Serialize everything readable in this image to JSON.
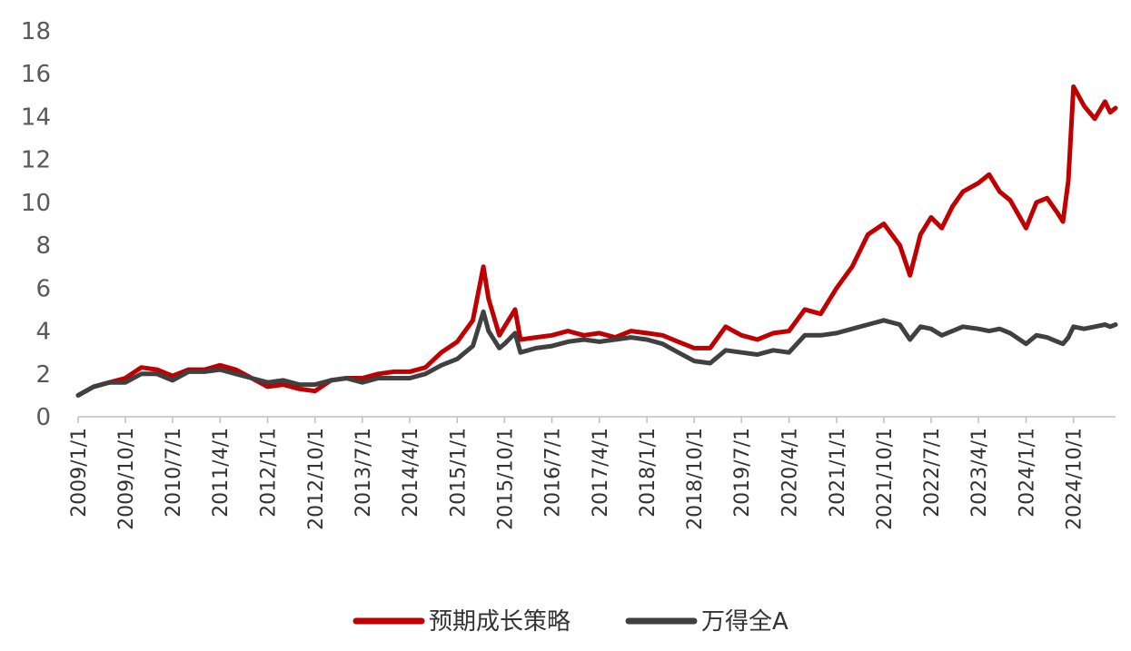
{
  "chart_data": {
    "type": "line",
    "ylim": [
      0,
      18
    ],
    "yticks": [
      "0",
      "2",
      "4",
      "6",
      "8",
      "10",
      "12",
      "14",
      "16",
      "18"
    ],
    "x_tick_labels": [
      "2009/1/1",
      "2009/10/1",
      "2010/7/1",
      "2011/4/1",
      "2012/1/1",
      "2012/10/1",
      "2013/7/1",
      "2014/4/1",
      "2015/1/1",
      "2015/10/1",
      "2016/7/1",
      "2017/4/1",
      "2018/1/1",
      "2018/10/1",
      "2019/7/1",
      "2020/4/1",
      "2021/1/1",
      "2021/10/1",
      "2022/7/1",
      "2023/4/1",
      "2024/1/1",
      "2024/10/1"
    ],
    "x_range": [
      "2009/1/1",
      "2025/6/1"
    ],
    "legend_position": "bottom",
    "series": [
      {
        "name": "预期成长策略",
        "color": "#C00000",
        "points": [
          [
            "2009/1/1",
            1.0
          ],
          [
            "2009/4/1",
            1.4
          ],
          [
            "2009/7/1",
            1.6
          ],
          [
            "2009/10/1",
            1.8
          ],
          [
            "2010/1/1",
            2.3
          ],
          [
            "2010/4/1",
            2.2
          ],
          [
            "2010/7/1",
            1.9
          ],
          [
            "2010/10/1",
            2.2
          ],
          [
            "2011/1/1",
            2.2
          ],
          [
            "2011/4/1",
            2.4
          ],
          [
            "2011/7/1",
            2.2
          ],
          [
            "2011/10/1",
            1.8
          ],
          [
            "2012/1/1",
            1.4
          ],
          [
            "2012/4/1",
            1.5
          ],
          [
            "2012/7/1",
            1.3
          ],
          [
            "2012/10/1",
            1.2
          ],
          [
            "2013/1/1",
            1.7
          ],
          [
            "2013/4/1",
            1.8
          ],
          [
            "2013/7/1",
            1.8
          ],
          [
            "2013/10/1",
            2.0
          ],
          [
            "2014/1/1",
            2.1
          ],
          [
            "2014/4/1",
            2.1
          ],
          [
            "2014/7/1",
            2.3
          ],
          [
            "2014/10/1",
            3.0
          ],
          [
            "2015/1/1",
            3.5
          ],
          [
            "2015/4/1",
            4.5
          ],
          [
            "2015/6/1",
            7.0
          ],
          [
            "2015/7/1",
            5.5
          ],
          [
            "2015/9/1",
            3.8
          ],
          [
            "2015/10/1",
            4.2
          ],
          [
            "2015/12/1",
            5.0
          ],
          [
            "2016/1/1",
            3.6
          ],
          [
            "2016/4/1",
            3.7
          ],
          [
            "2016/7/1",
            3.8
          ],
          [
            "2016/10/1",
            4.0
          ],
          [
            "2017/1/1",
            3.8
          ],
          [
            "2017/4/1",
            3.9
          ],
          [
            "2017/7/1",
            3.7
          ],
          [
            "2017/10/1",
            4.0
          ],
          [
            "2018/1/1",
            3.9
          ],
          [
            "2018/4/1",
            3.8
          ],
          [
            "2018/7/1",
            3.5
          ],
          [
            "2018/10/1",
            3.2
          ],
          [
            "2019/1/1",
            3.2
          ],
          [
            "2019/4/1",
            4.2
          ],
          [
            "2019/7/1",
            3.8
          ],
          [
            "2019/10/1",
            3.6
          ],
          [
            "2020/1/1",
            3.9
          ],
          [
            "2020/4/1",
            4.0
          ],
          [
            "2020/7/1",
            5.0
          ],
          [
            "2020/10/1",
            4.8
          ],
          [
            "2021/1/1",
            6.0
          ],
          [
            "2021/4/1",
            7.0
          ],
          [
            "2021/7/1",
            8.5
          ],
          [
            "2021/10/1",
            9.0
          ],
          [
            "2022/1/1",
            8.0
          ],
          [
            "2022/3/1",
            6.6
          ],
          [
            "2022/5/1",
            8.5
          ],
          [
            "2022/7/1",
            9.3
          ],
          [
            "2022/9/1",
            8.8
          ],
          [
            "2022/11/1",
            9.8
          ],
          [
            "2023/1/1",
            10.5
          ],
          [
            "2023/4/1",
            10.9
          ],
          [
            "2023/6/1",
            11.3
          ],
          [
            "2023/8/1",
            10.5
          ],
          [
            "2023/10/1",
            10.1
          ],
          [
            "2024/1/1",
            8.8
          ],
          [
            "2024/3/1",
            10.0
          ],
          [
            "2024/5/1",
            10.2
          ],
          [
            "2024/7/1",
            9.5
          ],
          [
            "2024/8/1",
            9.1
          ],
          [
            "2024/9/1",
            11.0
          ],
          [
            "2024/10/1",
            15.4
          ],
          [
            "2024/12/1",
            14.5
          ],
          [
            "2025/2/1",
            13.9
          ],
          [
            "2025/4/1",
            14.7
          ],
          [
            "2025/5/1",
            14.2
          ],
          [
            "2025/6/1",
            14.4
          ]
        ]
      },
      {
        "name": "万得全A",
        "color": "#404040",
        "points": [
          [
            "2009/1/1",
            1.0
          ],
          [
            "2009/4/1",
            1.4
          ],
          [
            "2009/7/1",
            1.6
          ],
          [
            "2009/10/1",
            1.6
          ],
          [
            "2010/1/1",
            2.0
          ],
          [
            "2010/4/1",
            2.0
          ],
          [
            "2010/7/1",
            1.7
          ],
          [
            "2010/10/1",
            2.1
          ],
          [
            "2011/1/1",
            2.1
          ],
          [
            "2011/4/1",
            2.2
          ],
          [
            "2011/7/1",
            2.0
          ],
          [
            "2011/10/1",
            1.8
          ],
          [
            "2012/1/1",
            1.6
          ],
          [
            "2012/4/1",
            1.7
          ],
          [
            "2012/7/1",
            1.5
          ],
          [
            "2012/10/1",
            1.5
          ],
          [
            "2013/1/1",
            1.7
          ],
          [
            "2013/4/1",
            1.8
          ],
          [
            "2013/7/1",
            1.6
          ],
          [
            "2013/10/1",
            1.8
          ],
          [
            "2014/1/1",
            1.8
          ],
          [
            "2014/4/1",
            1.8
          ],
          [
            "2014/7/1",
            2.0
          ],
          [
            "2014/10/1",
            2.4
          ],
          [
            "2015/1/1",
            2.7
          ],
          [
            "2015/4/1",
            3.3
          ],
          [
            "2015/6/1",
            4.9
          ],
          [
            "2015/7/1",
            4.0
          ],
          [
            "2015/9/1",
            3.2
          ],
          [
            "2015/10/1",
            3.4
          ],
          [
            "2015/12/1",
            3.9
          ],
          [
            "2016/1/1",
            3.0
          ],
          [
            "2016/4/1",
            3.2
          ],
          [
            "2016/7/1",
            3.3
          ],
          [
            "2016/10/1",
            3.5
          ],
          [
            "2017/1/1",
            3.6
          ],
          [
            "2017/4/1",
            3.5
          ],
          [
            "2017/7/1",
            3.6
          ],
          [
            "2017/10/1",
            3.7
          ],
          [
            "2018/1/1",
            3.6
          ],
          [
            "2018/4/1",
            3.4
          ],
          [
            "2018/7/1",
            3.0
          ],
          [
            "2018/10/1",
            2.6
          ],
          [
            "2019/1/1",
            2.5
          ],
          [
            "2019/4/1",
            3.1
          ],
          [
            "2019/7/1",
            3.0
          ],
          [
            "2019/10/1",
            2.9
          ],
          [
            "2020/1/1",
            3.1
          ],
          [
            "2020/4/1",
            3.0
          ],
          [
            "2020/7/1",
            3.8
          ],
          [
            "2020/10/1",
            3.8
          ],
          [
            "2021/1/1",
            3.9
          ],
          [
            "2021/4/1",
            4.1
          ],
          [
            "2021/7/1",
            4.3
          ],
          [
            "2021/10/1",
            4.5
          ],
          [
            "2022/1/1",
            4.3
          ],
          [
            "2022/3/1",
            3.6
          ],
          [
            "2022/5/1",
            4.2
          ],
          [
            "2022/7/1",
            4.1
          ],
          [
            "2022/9/1",
            3.8
          ],
          [
            "2022/11/1",
            4.0
          ],
          [
            "2023/1/1",
            4.2
          ],
          [
            "2023/4/1",
            4.1
          ],
          [
            "2023/6/1",
            4.0
          ],
          [
            "2023/8/1",
            4.1
          ],
          [
            "2023/10/1",
            3.9
          ],
          [
            "2024/1/1",
            3.4
          ],
          [
            "2024/3/1",
            3.8
          ],
          [
            "2024/5/1",
            3.7
          ],
          [
            "2024/7/1",
            3.5
          ],
          [
            "2024/8/1",
            3.4
          ],
          [
            "2024/9/1",
            3.7
          ],
          [
            "2024/10/1",
            4.2
          ],
          [
            "2024/12/1",
            4.1
          ],
          [
            "2025/2/1",
            4.2
          ],
          [
            "2025/4/1",
            4.3
          ],
          [
            "2025/5/1",
            4.2
          ],
          [
            "2025/6/1",
            4.3
          ]
        ]
      }
    ]
  }
}
